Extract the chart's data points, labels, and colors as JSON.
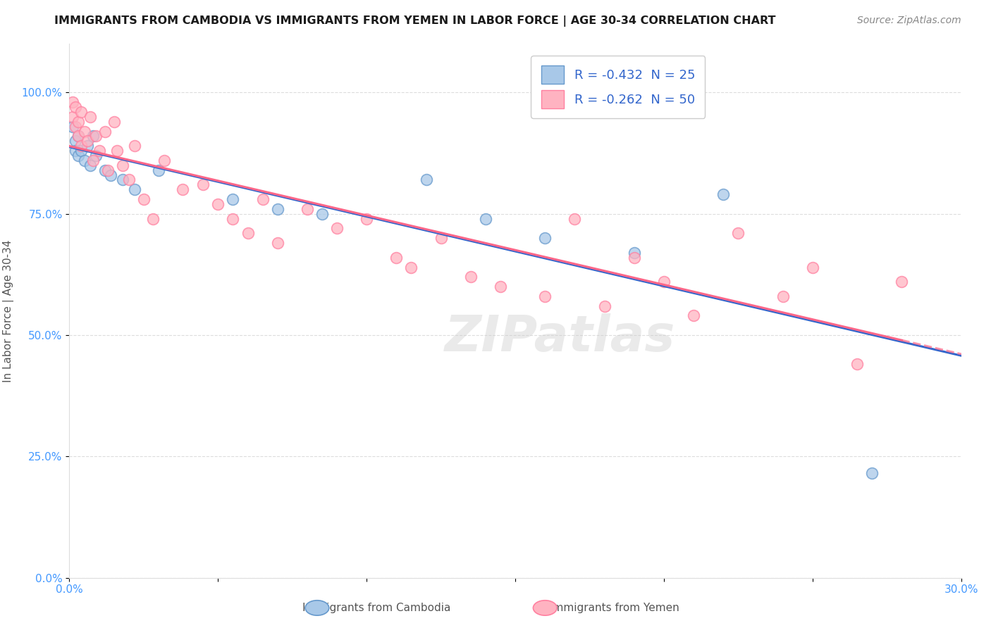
{
  "title": "IMMIGRANTS FROM CAMBODIA VS IMMIGRANTS FROM YEMEN IN LABOR FORCE | AGE 30-34 CORRELATION CHART",
  "source": "Source: ZipAtlas.com",
  "ylabel": "In Labor Force | Age 30-34",
  "xlim": [
    0.0,
    0.3
  ],
  "ylim": [
    0.0,
    1.1
  ],
  "yticks": [
    0.0,
    0.25,
    0.5,
    0.75,
    1.0
  ],
  "ytick_labels": [
    "0.0%",
    "25.0%",
    "50.0%",
    "75.0%",
    "100.0%"
  ],
  "xticks": [
    0.0,
    0.05,
    0.1,
    0.15,
    0.2,
    0.25,
    0.3
  ],
  "xtick_labels": [
    "0.0%",
    "",
    "",
    "",
    "",
    "",
    "30.0%"
  ],
  "cambodia_color": "#a8c8e8",
  "cambodia_edge": "#6699cc",
  "cambodia_line_color": "#3366cc",
  "yemen_color": "#ffb3c1",
  "yemen_edge": "#ff80a0",
  "yemen_line_color": "#ff6688",
  "R_cambodia": -0.432,
  "N_cambodia": 25,
  "R_yemen": -0.262,
  "N_yemen": 50,
  "watermark": "ZIPatlas",
  "watermark_color": "#cccccc",
  "grid_color": "#dddddd",
  "tick_color": "#4499ff",
  "cambodia_x": [
    0.001,
    0.002,
    0.002,
    0.003,
    0.003,
    0.004,
    0.005,
    0.006,
    0.007,
    0.008,
    0.009,
    0.012,
    0.014,
    0.018,
    0.022,
    0.03,
    0.055,
    0.07,
    0.085,
    0.12,
    0.14,
    0.16,
    0.19,
    0.22,
    0.27
  ],
  "cambodia_y": [
    0.93,
    0.9,
    0.88,
    0.91,
    0.87,
    0.88,
    0.86,
    0.89,
    0.85,
    0.91,
    0.87,
    0.84,
    0.83,
    0.82,
    0.8,
    0.84,
    0.78,
    0.76,
    0.75,
    0.82,
    0.74,
    0.7,
    0.67,
    0.79,
    0.215
  ],
  "yemen_x": [
    0.001,
    0.001,
    0.002,
    0.002,
    0.003,
    0.003,
    0.004,
    0.004,
    0.005,
    0.006,
    0.007,
    0.008,
    0.009,
    0.01,
    0.012,
    0.013,
    0.015,
    0.016,
    0.018,
    0.02,
    0.022,
    0.025,
    0.028,
    0.032,
    0.038,
    0.045,
    0.05,
    0.055,
    0.06,
    0.065,
    0.07,
    0.08,
    0.09,
    0.1,
    0.11,
    0.115,
    0.125,
    0.135,
    0.145,
    0.16,
    0.17,
    0.18,
    0.19,
    0.2,
    0.21,
    0.225,
    0.24,
    0.25,
    0.265,
    0.28
  ],
  "yemen_y": [
    0.95,
    0.98,
    0.93,
    0.97,
    0.91,
    0.94,
    0.89,
    0.96,
    0.92,
    0.9,
    0.95,
    0.86,
    0.91,
    0.88,
    0.92,
    0.84,
    0.94,
    0.88,
    0.85,
    0.82,
    0.89,
    0.78,
    0.74,
    0.86,
    0.8,
    0.81,
    0.77,
    0.74,
    0.71,
    0.78,
    0.69,
    0.76,
    0.72,
    0.74,
    0.66,
    0.64,
    0.7,
    0.62,
    0.6,
    0.58,
    0.74,
    0.56,
    0.66,
    0.61,
    0.54,
    0.71,
    0.58,
    0.64,
    0.44,
    0.61
  ]
}
